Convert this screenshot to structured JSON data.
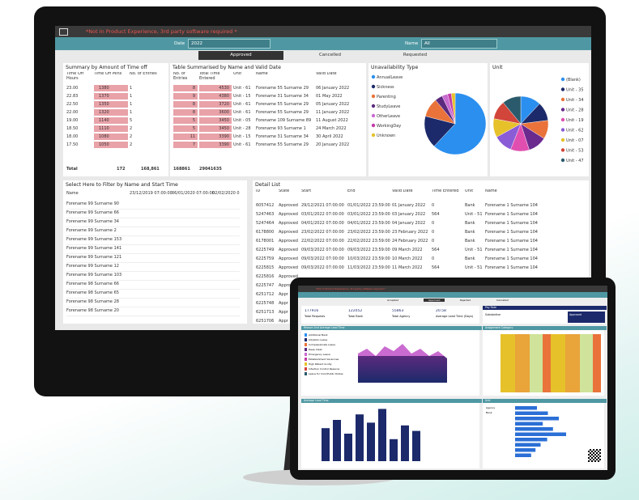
{
  "header": {
    "banner": "*Not In Product Experience, 3rd party software required *",
    "date_label": "Date",
    "date_value": "2022",
    "name_label": "Name",
    "name_value": "All"
  },
  "tabs": [
    "Approved",
    "Cancelled",
    "Requested"
  ],
  "summary": {
    "title": "Summary by Amount of Time off",
    "columns": [
      "Time Off Hours",
      "Time Off Mins",
      "No. of Entries"
    ],
    "rows": [
      [
        "23.00",
        "1380",
        "1"
      ],
      [
        "22.83",
        "1370",
        "1"
      ],
      [
        "22.50",
        "1350",
        "1"
      ],
      [
        "22.00",
        "1320",
        "1"
      ],
      [
        "19.00",
        "1140",
        "5"
      ],
      [
        "18.50",
        "1110",
        "2"
      ],
      [
        "18.00",
        "1080",
        "2"
      ],
      [
        "17.50",
        "1050",
        "2"
      ]
    ],
    "total": [
      "Total",
      "172",
      "168,861"
    ]
  },
  "by_name": {
    "title": "Table Summarised by Name and Valid Date",
    "columns": [
      "No. of Entries",
      "Total Time Entered",
      "Unit",
      "Name",
      "Valid Date"
    ],
    "rows": [
      [
        "8",
        "4530",
        "Unit - 61",
        "Forename 55 Surname 29",
        "06 January 2022"
      ],
      [
        "9",
        "4380",
        "Unit - 15",
        "Forename 31 Surname 34",
        "01 May 2022"
      ],
      [
        "8",
        "3720",
        "Unit - 61",
        "Forename 55 Surname 29",
        "05 January 2022"
      ],
      [
        "8",
        "3600",
        "Unit - 61",
        "Forename 55 Surname 29",
        "11 January 2022"
      ],
      [
        "5",
        "3450",
        "Unit - 05",
        "Forename 109 Surname 89",
        "11 August 2022"
      ],
      [
        "5",
        "3450",
        "Unit - 28",
        "Forename 93 Surname 1",
        "24 March 2022"
      ],
      [
        "11",
        "3390",
        "Unit - 15",
        "Forename 31 Surname 34",
        "30 April 2022"
      ],
      [
        "7",
        "3390",
        "Unit - 61",
        "Forename 55 Surname 29",
        "20 January 2022"
      ]
    ],
    "total": [
      "168861",
      "29041635"
    ]
  },
  "unavailability": {
    "title": "Unavailability Type",
    "names": [
      "AnnualLeave",
      "Sickness",
      "Parenting",
      "StudyLeave",
      "OtherLeave",
      "WorkingDay",
      "Unknown"
    ],
    "values": [
      62,
      17,
      10,
      4,
      3,
      2,
      2
    ],
    "colors": [
      "#2b8fef",
      "#1c2a6b",
      "#e9733a",
      "#5b2a7e",
      "#c96bd0",
      "#c23ba8",
      "#e6c12a"
    ]
  },
  "unit": {
    "title": "Unit",
    "names": [
      "(Blank)",
      "Unit - 35",
      "Unit - 34",
      "Unit - 28",
      "Unit - 19",
      "Unit - 62",
      "Unit - 07",
      "Unit - 53",
      "Unit - 47"
    ],
    "values": [
      12,
      11,
      11,
      11,
      11,
      11,
      11,
      11,
      11
    ],
    "colors": [
      "#2b8fef",
      "#1c2a6b",
      "#e9733a",
      "#6a2a8e",
      "#e04fb0",
      "#8a5cd6",
      "#e6c12a",
      "#d2453a",
      "#2a5a6b"
    ]
  },
  "filter": {
    "title": "Select Here to Filter by Name and Start Time",
    "column": "Name",
    "dates": [
      "23/12/2019 07:00:00",
      "06/01/2020 07:00:00",
      "02/02/2020 0"
    ],
    "names": [
      "Forename 99 Surname 90",
      "Forename 99 Surname 66",
      "Forename 99 Surname 34",
      "Forename 99 Surname 2",
      "Forename 99 Surname 153",
      "Forename 99 Surname 141",
      "Forename 99 Surname 121",
      "Forename 99 Surname 12",
      "Forename 99 Surname 103",
      "Forename 98 Surname 66",
      "Forename 98 Surname 65",
      "Forename 98 Surname 28",
      "Forename 98 Surname 20"
    ]
  },
  "detail": {
    "title": "Detail List",
    "columns": [
      "ID",
      "State",
      "Start",
      "End",
      "Valid Date",
      "Time Entered",
      "Unit",
      "Name"
    ],
    "rows": [
      [
        "6057412",
        "Approved",
        "29/12/2021 07:00:00",
        "01/01/2022 23:59:00",
        "01 January 2022",
        "0",
        "Bank",
        "Forename 1 Surname 104"
      ],
      [
        "5247463",
        "Approved",
        "03/01/2022 07:00:00",
        "03/01/2022 23:59:00",
        "03 January 2022",
        "564",
        "Unit - 51",
        "Forename 1 Surname 104"
      ],
      [
        "5247464",
        "Approved",
        "04/01/2022 07:00:00",
        "04/01/2022 23:59:00",
        "04 January 2022",
        "0",
        "Bank",
        "Forename 1 Surname 104"
      ],
      [
        "6178800",
        "Approved",
        "23/02/2022 07:00:00",
        "23/02/2022 23:59:00",
        "23 February 2022",
        "0",
        "Bank",
        "Forename 1 Surname 104"
      ],
      [
        "6178001",
        "Approved",
        "22/02/2022 07:00:00",
        "22/02/2022 23:59:00",
        "24 February 2022",
        "0",
        "Bank",
        "Forename 1 Surname 104"
      ],
      [
        "6225749",
        "Approved",
        "09/03/2022 07:00:00",
        "09/03/2022 23:59:00",
        "09 March 2022",
        "564",
        "Unit - 51",
        "Forename 1 Surname 104"
      ],
      [
        "6225759",
        "Approved",
        "09/03/2022 07:00:00",
        "10/03/2022 23:59:00",
        "10 March 2022",
        "0",
        "Bank",
        "Forename 1 Surname 104"
      ],
      [
        "6225815",
        "Approved",
        "09/03/2022 07:00:00",
        "11/03/2022 23:59:00",
        "11 March 2022",
        "564",
        "Unit - 51",
        "Forename 1 Surname 104"
      ],
      [
        "6225816",
        "Approved"
      ],
      [
        "6225747",
        "Approv"
      ],
      [
        "6251712",
        "Appr"
      ],
      [
        "6225748",
        "Appr"
      ],
      [
        "6251713",
        "Appr"
      ],
      [
        "6251706",
        "Appr"
      ]
    ]
  },
  "tablet": {
    "tabs": [
      "Accepted",
      "Approved",
      "Rejected",
      "Cancelled"
    ],
    "kpis": [
      [
        "177916",
        "Total Requests"
      ],
      [
        "122052",
        "Total Bank"
      ],
      [
        "55863",
        "Total Agency"
      ],
      [
        "20.58",
        "Average Lead Time (Days)"
      ]
    ],
    "pay_rate": {
      "title": "Pay Rate",
      "row": "Substantive",
      "value": "Approved"
    },
    "reason_title": "Reason And Average Lead Time",
    "reasons": [
      "Additional Bank",
      "Adoption Leave",
      "Compassionate Leave",
      "Deep Clean",
      "Emergency Leave",
      "Establishment Vacancies",
      "High Patient Acuity",
      "Infection Control Reasons",
      "Leave for Civic/Public Duties"
    ],
    "assignment_title": "Assignment Category",
    "lead_title": "Average Lead Time",
    "lead_values": [
      60,
      75,
      50,
      85,
      70,
      95,
      40,
      65,
      55
    ],
    "unit_title": "Unit",
    "unit_legend": [
      "Agency",
      "Bank"
    ],
    "unit_values": [
      30,
      45,
      60,
      38,
      52,
      70,
      44,
      35,
      28,
      22
    ]
  }
}
